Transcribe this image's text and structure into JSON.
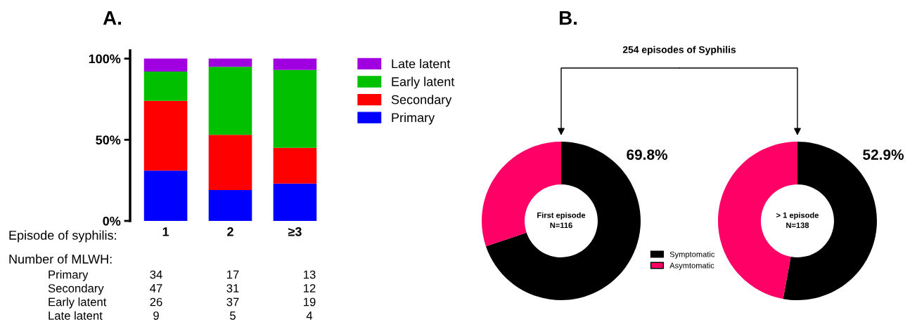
{
  "chart_data": [
    {
      "type": "bar",
      "title": "A.",
      "xlabel": "Episode of syphilis:",
      "categories": [
        "1",
        "2",
        "≥3"
      ],
      "stacked": true,
      "series": [
        {
          "name": "Primary",
          "color": "#0000ff",
          "values": [
            31,
            19,
            23
          ]
        },
        {
          "name": "Secondary",
          "color": "#ff0000",
          "values": [
            43,
            34,
            22
          ]
        },
        {
          "name": "Early latent",
          "color": "#00c000",
          "values": [
            18,
            42,
            48
          ]
        },
        {
          "name": "Late latent",
          "color": "#a000e0",
          "values": [
            8,
            5,
            7
          ]
        }
      ],
      "ylim": [
        0,
        105
      ],
      "yticks": [
        {
          "value": 0,
          "label": "0%"
        },
        {
          "value": 50,
          "label": "50%"
        },
        {
          "value": 100,
          "label": "100%"
        }
      ],
      "legend": "right",
      "annotations": [
        "Number of MLWH:",
        "Primary",
        "34",
        "17",
        "13",
        "Secondary",
        "47",
        "31",
        "12",
        "Early latent",
        "26",
        "37",
        "19",
        "Late latent",
        "9",
        "5",
        "4"
      ]
    },
    {
      "type": "donut",
      "title": "B.",
      "subtitle": "254 episodes of Syphilis",
      "categories": [
        "Symptomatic",
        "Asymtomatic"
      ],
      "values": [
        69.8,
        30.2
      ],
      "colors": [
        "#000000",
        "#ff0066"
      ],
      "value_labels": [
        "69.8%",
        null
      ],
      "legend": "right",
      "annotations": [
        "First episode\nN=116"
      ]
    },
    {
      "type": "donut",
      "categories": [
        null,
        null
      ],
      "values": [
        52.9,
        47.1
      ],
      "colors": [
        "#000000",
        "#ff0066"
      ],
      "value_labels": [
        "52.9%",
        null
      ],
      "annotations": [
        "> 1 episode\nN=138"
      ]
    }
  ]
}
